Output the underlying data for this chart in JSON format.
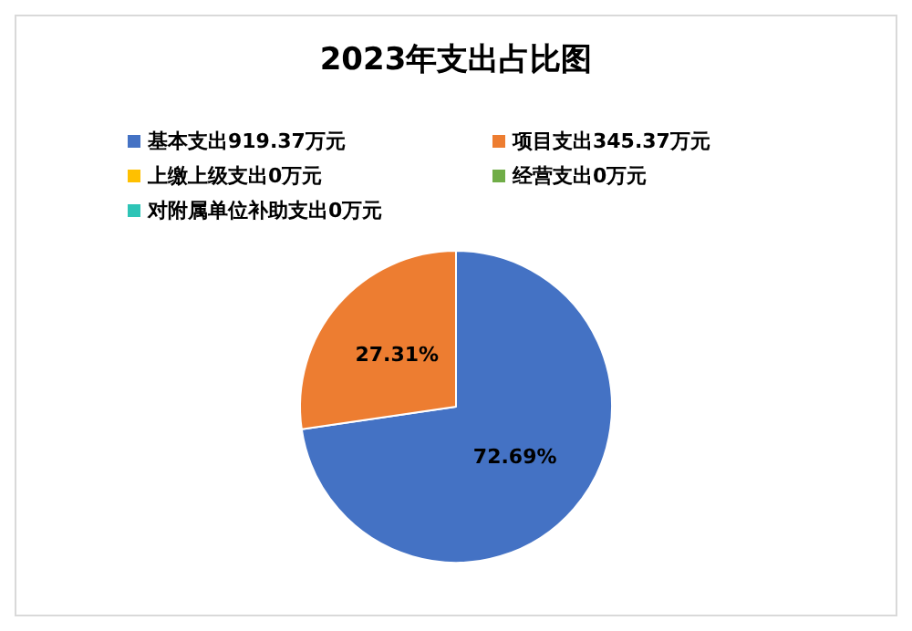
{
  "chart_data": {
    "type": "pie",
    "title": "2023年支出占比图",
    "categories": [
      "基本支出919.37万元",
      "项目支出345.37万元",
      "上缴上级支出0万元",
      "经营支出0万元",
      "对附属单位补助支出0万元"
    ],
    "values": [
      72.69,
      27.31,
      0,
      0,
      0
    ],
    "colors": [
      "#4472c4",
      "#ed7d31",
      "#ffc000",
      "#70ad47",
      "#2ec4b6"
    ],
    "value_labels": [
      "72.69%",
      "27.31%",
      null,
      null,
      null
    ],
    "legend": "top"
  }
}
